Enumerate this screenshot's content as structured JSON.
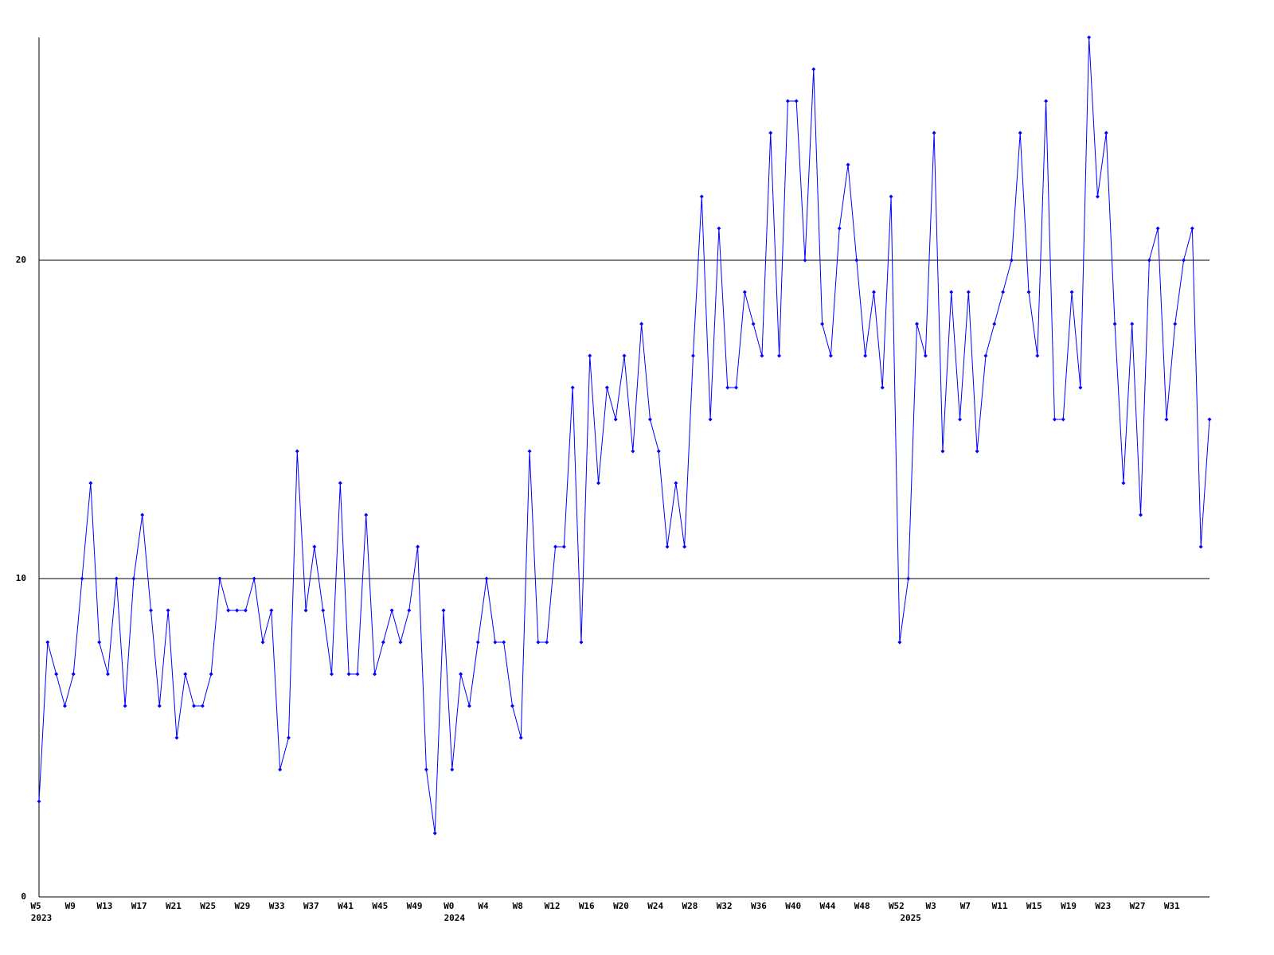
{
  "chart_data": {
    "type": "line",
    "categories": [
      "W5",
      null,
      null,
      null,
      "W9",
      null,
      null,
      null,
      "W13",
      null,
      null,
      null,
      "W17",
      null,
      null,
      null,
      "W21",
      null,
      null,
      null,
      "W25",
      null,
      null,
      null,
      "W29",
      null,
      null,
      null,
      "W33",
      null,
      null,
      null,
      "W37",
      null,
      null,
      null,
      "W41",
      null,
      null,
      null,
      "W45",
      null,
      null,
      null,
      "W49",
      null,
      null,
      null,
      "W0",
      null,
      null,
      null,
      "W4",
      null,
      null,
      null,
      "W8",
      null,
      null,
      null,
      "W12",
      null,
      null,
      null,
      "W16",
      null,
      null,
      null,
      "W20",
      null,
      null,
      null,
      "W24",
      null,
      null,
      null,
      "W28",
      null,
      null,
      null,
      "W32",
      null,
      null,
      null,
      "W36",
      null,
      null,
      null,
      "W40",
      null,
      null,
      null,
      "W44",
      null,
      null,
      null,
      "W48",
      null,
      null,
      null,
      "W52",
      null,
      null,
      null,
      "W3",
      null,
      null,
      null,
      "W7",
      null,
      null,
      null,
      "W11",
      null,
      null,
      null,
      "W15",
      null,
      null,
      null,
      "W19",
      null,
      null,
      null,
      "W23",
      null,
      null,
      null,
      "W27",
      null,
      null,
      null,
      "W31",
      null,
      null,
      null,
      null
    ],
    "year_labels": [
      "2023",
      null,
      null,
      null,
      null,
      null,
      null,
      null,
      null,
      null,
      null,
      null,
      null,
      null,
      null,
      null,
      null,
      null,
      null,
      null,
      null,
      null,
      null,
      null,
      null,
      null,
      null,
      null,
      null,
      null,
      null,
      null,
      null,
      null,
      null,
      null,
      null,
      null,
      null,
      null,
      null,
      null,
      null,
      null,
      null,
      null,
      null,
      null,
      "2024",
      null,
      null,
      null,
      null,
      null,
      null,
      null,
      null,
      null,
      null,
      null,
      null,
      null,
      null,
      null,
      null,
      null,
      null,
      null,
      null,
      null,
      null,
      null,
      null,
      null,
      null,
      null,
      null,
      null,
      null,
      null,
      null,
      null,
      null,
      null,
      null,
      null,
      null,
      null,
      null,
      null,
      null,
      null,
      null,
      null,
      null,
      null,
      null,
      null,
      null,
      null,
      null,
      "2025",
      null,
      null,
      null,
      null,
      null,
      null,
      null,
      null,
      null,
      null,
      null,
      null,
      null,
      null,
      null,
      null,
      null,
      null,
      null,
      null,
      null,
      null,
      null,
      null,
      null,
      null,
      null,
      null,
      null,
      null,
      null,
      null,
      null,
      null,
      null
    ],
    "series": [
      {
        "color": "#0000ff",
        "values": [
          3,
          8,
          7,
          6,
          7,
          10,
          13,
          8,
          7,
          10,
          6,
          10,
          12,
          9,
          6,
          9,
          5,
          7,
          6,
          6,
          7,
          10,
          9,
          9,
          9,
          10,
          8,
          9,
          4,
          5,
          14,
          9,
          11,
          9,
          7,
          13,
          7,
          7,
          12,
          7,
          8,
          9,
          8,
          9,
          11,
          4,
          2,
          9,
          4,
          7,
          6,
          8,
          10,
          8,
          8,
          6,
          5,
          14,
          8,
          8,
          11,
          11,
          16,
          8,
          17,
          13,
          16,
          15,
          17,
          14,
          18,
          15,
          14,
          11,
          13,
          11,
          17,
          22,
          15,
          21,
          16,
          16,
          19,
          18,
          17,
          24,
          17,
          25,
          25,
          20,
          26,
          18,
          17,
          21,
          23,
          20,
          17,
          19,
          16,
          22,
          8,
          10,
          18,
          17,
          24,
          14,
          19,
          15,
          19,
          14,
          17,
          18,
          19,
          20,
          24,
          19,
          17,
          25,
          15,
          15,
          19,
          16,
          27,
          22,
          24,
          18,
          13,
          18,
          12,
          20,
          21,
          15,
          18,
          20,
          21,
          11,
          15
        ]
      }
    ],
    "ylim": [
      0,
      27
    ],
    "yticks": [
      0,
      10,
      20
    ],
    "grid": true
  }
}
